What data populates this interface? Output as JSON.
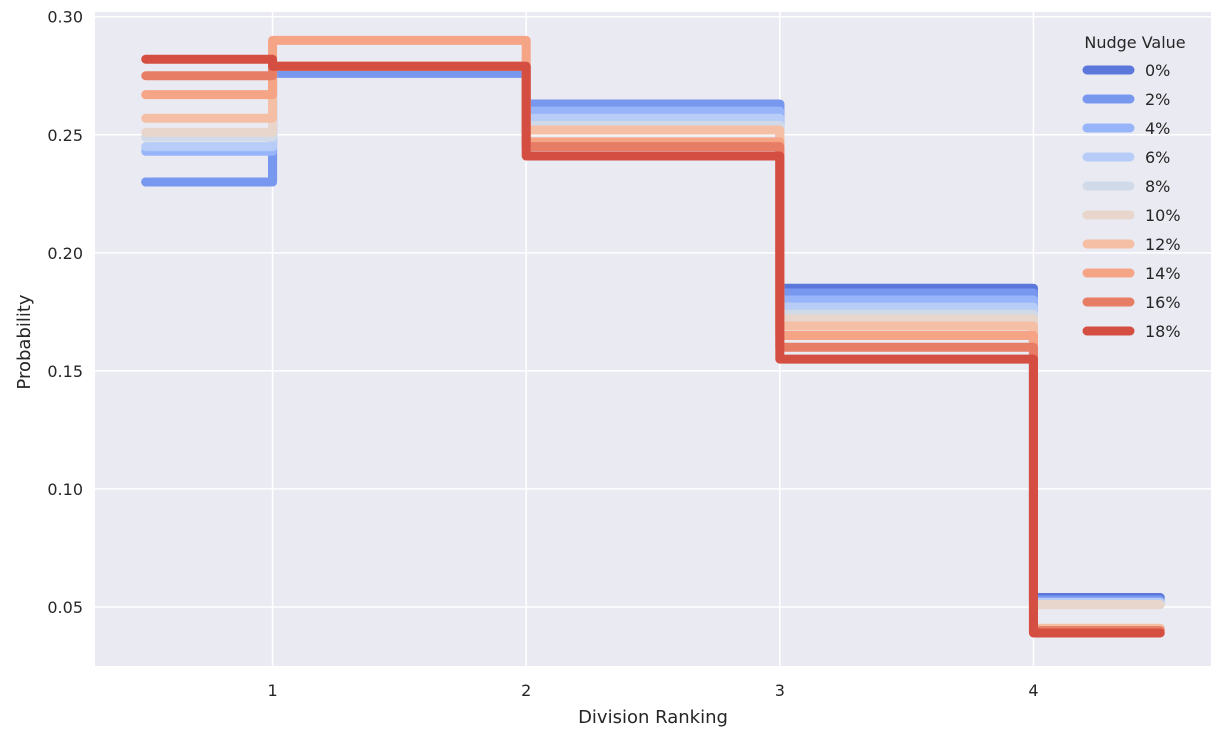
{
  "chart_data": {
    "type": "line",
    "style": "step",
    "xlabel": "Division Ranking",
    "ylabel": "Probability",
    "x": [
      1,
      2,
      3,
      4
    ],
    "xlim": [
      0.3,
      4.7
    ],
    "ylim": [
      0.025,
      0.302
    ],
    "xticks": [
      "1",
      "2",
      "3",
      "4"
    ],
    "yticks": [
      "0.05",
      "0.10",
      "0.15",
      "0.20",
      "0.25",
      "0.30"
    ],
    "grid": true,
    "legend": {
      "title": "Nudge Value",
      "placement": "top-right"
    },
    "series": [
      {
        "name": "0%",
        "color": "#5B77DB",
        "values": [
          0.23,
          0.263,
          0.185,
          0.054
        ]
      },
      {
        "name": "2%",
        "color": "#7898F0",
        "values": [
          0.23,
          0.263,
          0.183,
          0.053
        ]
      },
      {
        "name": "4%",
        "color": "#98B5FA",
        "values": [
          0.243,
          0.26,
          0.18,
          0.052
        ]
      },
      {
        "name": "6%",
        "color": "#B7CCF6",
        "values": [
          0.245,
          0.257,
          0.177,
          0.052
        ]
      },
      {
        "name": "8%",
        "color": "#D1DAE8",
        "values": [
          0.249,
          0.254,
          0.174,
          0.051
        ]
      },
      {
        "name": "10%",
        "color": "#E8D5CC",
        "values": [
          0.251,
          0.252,
          0.172,
          0.051
        ]
      },
      {
        "name": "12%",
        "color": "#F5BFA6",
        "values": [
          0.257,
          0.252,
          0.169,
          0.041
        ]
      },
      {
        "name": "14%",
        "color": "#F5A486",
        "values": [
          0.267,
          0.247,
          0.165,
          0.04
        ]
      },
      {
        "name": "16%",
        "color": "#E87D65",
        "values": [
          0.275,
          0.245,
          0.16,
          0.04
        ]
      },
      {
        "name": "18%",
        "color": "#D44E41",
        "values": [
          0.282,
          0.241,
          0.155,
          0.039
        ]
      }
    ],
    "series_x": [
      [
        0.5,
        1.0,
        2.0,
        3.0,
        4.5
      ]
    ],
    "step_series_top": [
      {
        "name": "2%",
        "segment_values": [
          0.23,
          0.276,
          0.263,
          0.183,
          0.053
        ]
      },
      {
        "name": "14%",
        "segment_values": [
          0.267,
          0.29,
          0.247,
          0.165,
          0.04
        ]
      }
    ]
  }
}
